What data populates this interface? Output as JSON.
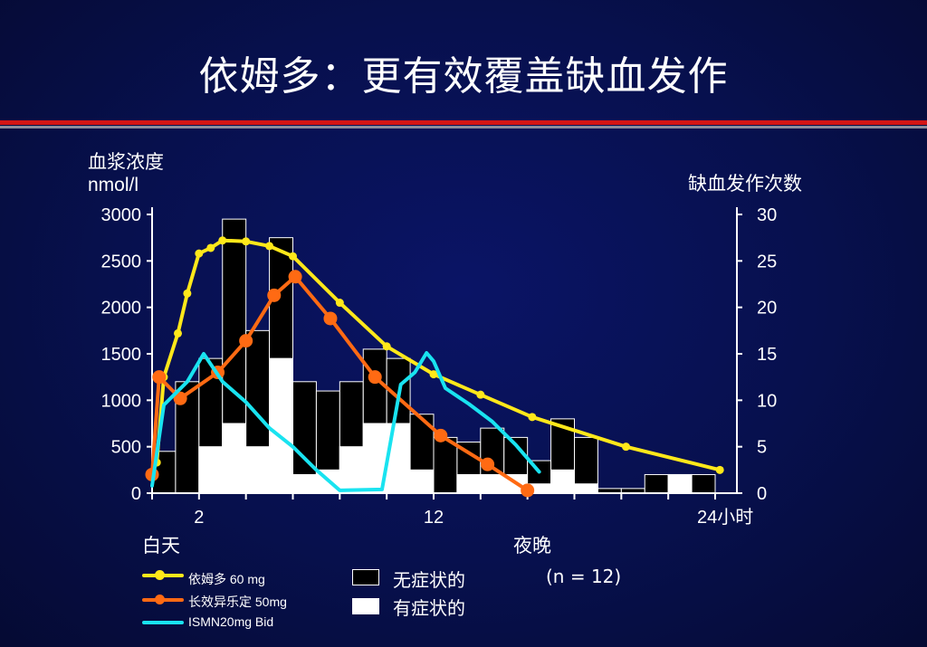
{
  "title": "依姆多：更有效覆盖缺血发作",
  "chart_data": {
    "type": "bar+line",
    "left_axis": {
      "label_line1": "血浆浓度",
      "label_line2": "nmol/l",
      "ylim": [
        0,
        3000
      ],
      "ticks": [
        "3000",
        "2500",
        "2000",
        "1500",
        "1000",
        "500",
        "0"
      ]
    },
    "right_axis": {
      "label": "缺血发作次数",
      "ylim": [
        0,
        30
      ],
      "ticks": [
        "30",
        "25",
        "20",
        "15",
        "10",
        "5",
        "0"
      ]
    },
    "x_axis": {
      "xlim": [
        0,
        24
      ],
      "tick_labels": [
        {
          "x": 2,
          "text": "2"
        },
        {
          "x": 12,
          "text": "12"
        },
        {
          "x": 24,
          "text": "24小时"
        }
      ]
    },
    "period_labels": {
      "day": "白天",
      "night": "夜晚"
    },
    "bars": {
      "bin_start": [
        0,
        1,
        2,
        3,
        4,
        5,
        6,
        7,
        8,
        9,
        10,
        11,
        12,
        13,
        14,
        15,
        16,
        17,
        18,
        19,
        20,
        21,
        22,
        23
      ],
      "asymptomatic_total": [
        4.5,
        12,
        14.5,
        29.5,
        17.5,
        27.5,
        12,
        11,
        12,
        15.5,
        14.5,
        8.5,
        6,
        5.5,
        7,
        6,
        3.5,
        8,
        6,
        0.5,
        0.5,
        2,
        2,
        2
      ],
      "symptomatic": [
        0,
        0,
        5,
        7.5,
        5,
        14.5,
        2,
        2.5,
        5,
        7.5,
        7.5,
        2.5,
        0,
        2,
        2,
        2,
        1,
        2.5,
        1,
        0,
        0,
        0,
        2,
        0
      ]
    },
    "series": [
      {
        "name": "依姆多 60 mg",
        "color": "#ffe81a",
        "x": [
          0.2,
          0.5,
          1.1,
          1.5,
          2.0,
          2.5,
          3.0,
          4.0,
          5.0,
          6.0,
          8.0,
          10.0,
          12.0,
          14.0,
          16.2,
          20.2,
          24.2
        ],
        "y": [
          330,
          1250,
          1720,
          2150,
          2580,
          2640,
          2720,
          2710,
          2660,
          2550,
          2050,
          1580,
          1280,
          1060,
          820,
          500,
          250
        ],
        "markers": true
      },
      {
        "name": "长效异乐定 50mg",
        "color": "#ff6a13",
        "x": [
          0,
          0.3,
          1.2,
          2.8,
          4.0,
          5.2,
          6.1,
          7.6,
          9.5,
          12.3,
          14.3,
          16.0
        ],
        "y": [
          200,
          1250,
          1020,
          1300,
          1640,
          2130,
          2330,
          1880,
          1250,
          620,
          310,
          30
        ],
        "markers": true
      },
      {
        "name": "ISMN20mg Bid",
        "color": "#19e3f0",
        "x": [
          0,
          0.5,
          1.5,
          2.2,
          3.0,
          4.0,
          5.0,
          6.0,
          7.0,
          8.0,
          9.8,
          10.2,
          10.6,
          11.2,
          11.7,
          12.0,
          12.5,
          13.5,
          14.5,
          15.5,
          16.5
        ],
        "y": [
          80,
          950,
          1200,
          1500,
          1200,
          980,
          700,
          500,
          250,
          30,
          40,
          600,
          1170,
          1300,
          1510,
          1420,
          1130,
          960,
          770,
          520,
          230
        ],
        "markers": false
      }
    ],
    "legend_bars": [
      {
        "name": "无症状的",
        "fill": "#000000"
      },
      {
        "name": "有症状的",
        "fill": "#ffffff"
      }
    ],
    "note": "(n = 12)"
  }
}
